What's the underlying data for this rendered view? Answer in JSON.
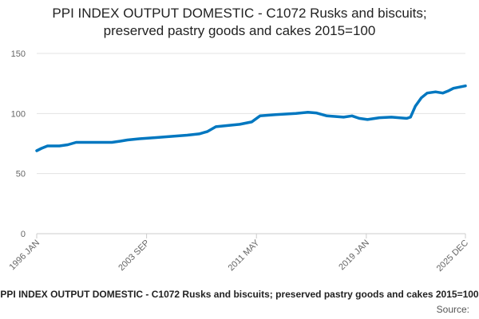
{
  "chart_data": {
    "type": "line",
    "title": [
      "PPI INDEX OUTPUT DOMESTIC - C1072 Rusks and biscuits;",
      "preserved pastry goods and cakes 2015=100"
    ],
    "footer": "PPI INDEX OUTPUT DOMESTIC - C1072 Rusks and biscuits; preserved pastry goods and cakes 2015=100",
    "source": "Source:",
    "color": "#0077c0",
    "grid": true,
    "ylim": [
      0,
      150
    ],
    "yticks": [
      0,
      50,
      100,
      150
    ],
    "xlim": [
      "1996 JAN",
      "2025 DEC"
    ],
    "xticks": [
      "1996 JAN",
      "2003 SEP",
      "2011 MAY",
      "2019 JAN",
      "2025 DEC"
    ],
    "x": [
      "1996 JAN",
      "1996 MAY",
      "1996 OCT",
      "1997 AUG",
      "1998 MAR",
      "1998 OCT",
      "1999 AUG",
      "2001 APR",
      "2001 NOV",
      "2002 MAY",
      "2003 MAR",
      "2004 MAY",
      "2005 JUN",
      "2006 JUL",
      "2007 MAY",
      "2007 DEC",
      "2008 JUL",
      "2009 MAY",
      "2010 MAR",
      "2011 JAN",
      "2011 AUG",
      "2012 SEP",
      "2014 FEB",
      "2014 DEC",
      "2015 JUL",
      "2016 APR",
      "2017 JUN",
      "2018 JAN",
      "2018 JUL",
      "2019 FEB",
      "2019 DEC",
      "2020 OCT",
      "2021 NOV",
      "2022 FEB",
      "2022 JUN",
      "2022 NOV",
      "2023 APR",
      "2023 NOV",
      "2024 MAY",
      "2024 OCT",
      "2025 FEB",
      "2025 JUL",
      "2025 DEC"
    ],
    "series": [
      {
        "name": "PPI INDEX OUTPUT DOMESTIC - C1072",
        "color": "#0077c0",
        "values": [
          69,
          71,
          73,
          73,
          74,
          76,
          76,
          76,
          77,
          78,
          79,
          80,
          81,
          82,
          83,
          85,
          89,
          90,
          91,
          93,
          98,
          99,
          100,
          101,
          100.5,
          98,
          97,
          98,
          96,
          95,
          96.5,
          97,
          96,
          97,
          106,
          113,
          117,
          118,
          117,
          119,
          121,
          122,
          123
        ]
      }
    ]
  }
}
